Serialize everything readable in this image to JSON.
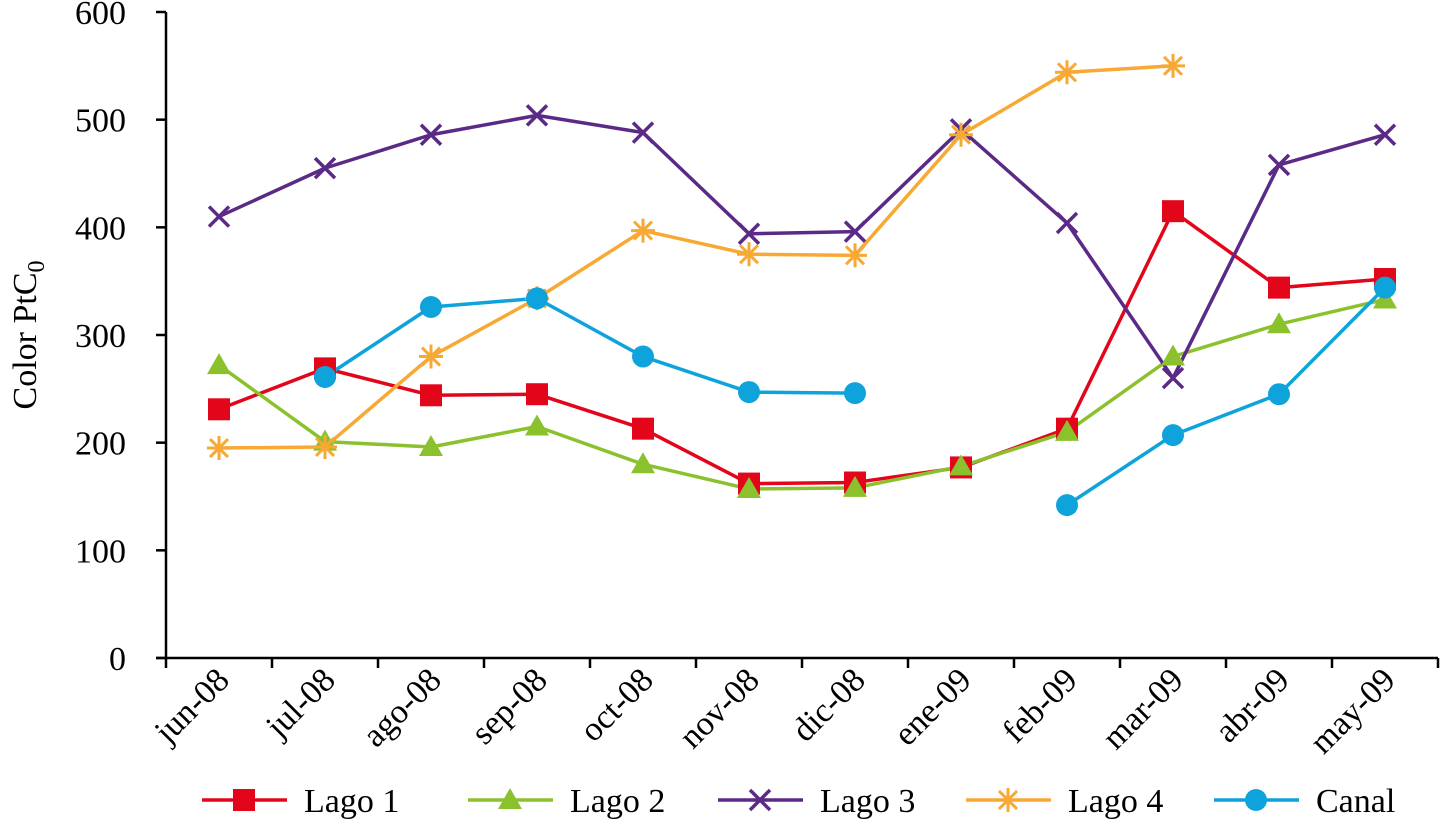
{
  "chart_data": {
    "type": "line",
    "title": "",
    "xlabel": "",
    "ylabel": "Color PtC",
    "ylabel_sub": "0",
    "categories": [
      "jun-08",
      "jul-08",
      "ago-08",
      "sep-08",
      "oct-08",
      "nov-08",
      "dic-08",
      "ene-09",
      "feb-09",
      "mar-09",
      "abr-09",
      "may-09"
    ],
    "yticks": [
      "0",
      "100",
      "200",
      "300",
      "400",
      "500",
      "600"
    ],
    "ylim": [
      0,
      600
    ],
    "grid": false,
    "legend_position": "bottom",
    "series": [
      {
        "name": "Lago 1",
        "color": "#e3061a",
        "marker": "square",
        "values": [
          231,
          269,
          244,
          245,
          213,
          162,
          163,
          177,
          213,
          415,
          344,
          352
        ]
      },
      {
        "name": "Lago 2",
        "color": "#8cc12e",
        "marker": "triangle",
        "values": [
          272,
          201,
          196,
          215,
          180,
          157,
          158,
          178,
          210,
          280,
          310,
          333
        ]
      },
      {
        "name": "Lago 3",
        "color": "#5b2a86",
        "marker": "x",
        "values": [
          410,
          455,
          486,
          504,
          488,
          394,
          396,
          491,
          404,
          260,
          458,
          486
        ]
      },
      {
        "name": "Lago 4",
        "color": "#f7a933",
        "marker": "star",
        "values": [
          195,
          196,
          280,
          334,
          397,
          375,
          374,
          486,
          544,
          550,
          null,
          null
        ]
      },
      {
        "name": "Canal",
        "color": "#0fa3dc",
        "marker": "circle",
        "values": [
          null,
          261,
          326,
          334,
          280,
          247,
          246,
          null,
          142,
          207,
          245,
          344
        ]
      }
    ]
  }
}
